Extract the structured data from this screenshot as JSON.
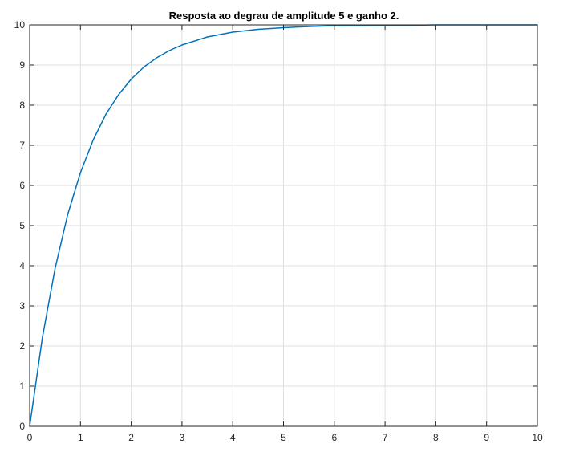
{
  "chart_data": {
    "type": "line",
    "title": "Resposta ao degrau de amplitude 5 e ganho 2.",
    "xlabel": "",
    "ylabel": "",
    "xlim": [
      0,
      10
    ],
    "ylim": [
      0,
      10
    ],
    "xticks": [
      0,
      1,
      2,
      3,
      4,
      5,
      6,
      7,
      8,
      9,
      10
    ],
    "yticks": [
      0,
      1,
      2,
      3,
      4,
      5,
      6,
      7,
      8,
      9,
      10
    ],
    "xtick_labels": [
      "0",
      "1",
      "2",
      "3",
      "4",
      "5",
      "6",
      "7",
      "8",
      "9",
      "10"
    ],
    "ytick_labels": [
      "0",
      "1",
      "2",
      "3",
      "4",
      "5",
      "6",
      "7",
      "8",
      "9",
      "10"
    ],
    "grid": true,
    "legend": "none",
    "series": [
      {
        "color": "#0072BD",
        "x": [
          0,
          0.25,
          0.5,
          0.75,
          1,
          1.25,
          1.5,
          1.75,
          2,
          2.25,
          2.5,
          2.75,
          3,
          3.5,
          4,
          4.5,
          5,
          5.5,
          6,
          6.5,
          7,
          7.5,
          8,
          8.5,
          9,
          9.5,
          10
        ],
        "y": [
          0,
          2.21,
          3.93,
          5.28,
          6.32,
          7.13,
          7.77,
          8.26,
          8.65,
          8.95,
          9.18,
          9.36,
          9.5,
          9.7,
          9.82,
          9.89,
          9.93,
          9.96,
          9.98,
          9.98,
          9.99,
          9.99,
          10,
          10,
          10,
          10,
          10
        ]
      }
    ],
    "colors": {
      "axis": "#262626",
      "grid": "#dfdfdf",
      "background": "#ffffff"
    }
  }
}
